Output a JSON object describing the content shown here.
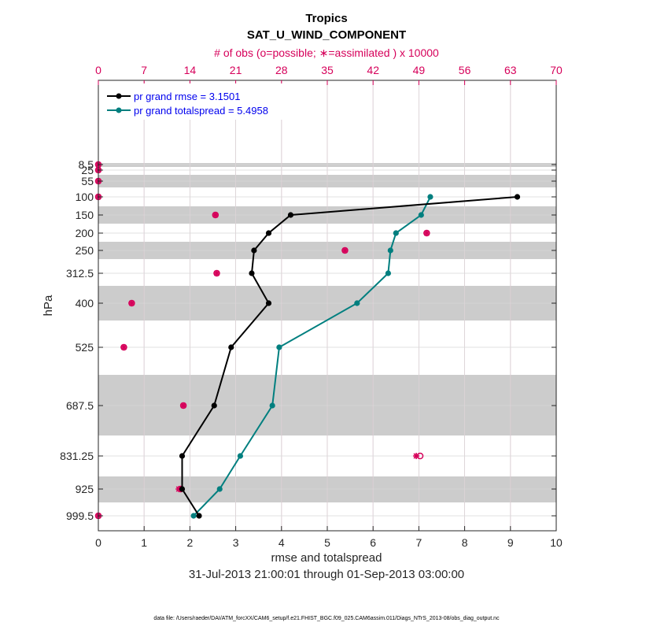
{
  "chart_data": {
    "type": "line",
    "title": "Tropics",
    "subtitle": "SAT_U_WIND_COMPONENT",
    "top_axis_label": "# of obs (o=possible; ∗=assimilated ) x 10000",
    "xlabel": "rmse and totalspread",
    "ylabel": "hPa",
    "date_range": "31-Jul-2013 21:00:01 through 01-Sep-2013 03:00:00",
    "footer": "data file: /Users/raeder/DAI/ATM_forcXX/CAM6_setup/f.e21.FHIST_BGC.f09_025.CAM6assim.011/Diags_NTrS_2013-08/obs_diag_output.nc",
    "xlim": [
      0,
      10
    ],
    "x_ticks": [
      "0",
      "1",
      "2",
      "3",
      "4",
      "5",
      "6",
      "7",
      "8",
      "9",
      "10"
    ],
    "top_lim": [
      0,
      70
    ],
    "top_ticks": [
      "0",
      "7",
      "14",
      "21",
      "28",
      "35",
      "42",
      "49",
      "56",
      "63",
      "70"
    ],
    "levels": [
      "8.5",
      "25",
      "55",
      "100",
      "150",
      "200",
      "250",
      "312.5",
      "400",
      "525",
      "687.5",
      "831.25",
      "925",
      "999.5"
    ],
    "grid": true,
    "legend_position": "top-left",
    "series": [
      {
        "name": "pr grand rmse = 3.1501",
        "color": "#000000",
        "points": [
          {
            "level": "100",
            "x": 9.15
          },
          {
            "level": "150",
            "x": 4.2
          },
          {
            "level": "200",
            "x": 3.72
          },
          {
            "level": "250",
            "x": 3.4
          },
          {
            "level": "312.5",
            "x": 3.35
          },
          {
            "level": "400",
            "x": 3.72
          },
          {
            "level": "525",
            "x": 2.9
          },
          {
            "level": "687.5",
            "x": 2.53
          },
          {
            "level": "831.25",
            "x": 1.83
          },
          {
            "level": "925",
            "x": 1.83
          },
          {
            "level": "999.5",
            "x": 2.2
          }
        ]
      },
      {
        "name": "pr grand totalspread = 5.4958",
        "color": "#007f7f",
        "points": [
          {
            "level": "100",
            "x": 7.25
          },
          {
            "level": "150",
            "x": 7.05
          },
          {
            "level": "200",
            "x": 6.5
          },
          {
            "level": "250",
            "x": 6.38
          },
          {
            "level": "312.5",
            "x": 6.33
          },
          {
            "level": "400",
            "x": 5.65
          },
          {
            "level": "525",
            "x": 3.95
          },
          {
            "level": "687.5",
            "x": 3.8
          },
          {
            "level": "831.25",
            "x": 3.1
          },
          {
            "level": "925",
            "x": 2.65
          },
          {
            "level": "999.5",
            "x": 2.08
          }
        ]
      }
    ],
    "obs_counts": [
      {
        "level": "8.5",
        "possible": 0,
        "assimilated": 0
      },
      {
        "level": "25",
        "possible": 0,
        "assimilated": 0
      },
      {
        "level": "55",
        "possible": 0,
        "assimilated": 0
      },
      {
        "level": "100",
        "possible": 0,
        "assimilated": 0
      },
      {
        "level": "150",
        "possible": 17.9,
        "assimilated": 17.9
      },
      {
        "level": "200",
        "possible": 50.2,
        "assimilated": 50.2
      },
      {
        "level": "250",
        "possible": 37.7,
        "assimilated": 37.7
      },
      {
        "level": "312.5",
        "possible": 18.1,
        "assimilated": 18.1
      },
      {
        "level": "400",
        "possible": 5.1,
        "assimilated": 5.1
      },
      {
        "level": "525",
        "possible": 3.9,
        "assimilated": 3.9
      },
      {
        "level": "687.5",
        "possible": 13.0,
        "assimilated": 13.0
      },
      {
        "level": "831.25",
        "possible": 49.2,
        "assimilated": 48.6
      },
      {
        "level": "925",
        "possible": 12.6,
        "assimilated": 12.3
      },
      {
        "level": "999.5",
        "possible": 0,
        "assimilated": 0
      }
    ],
    "colors": {
      "obs_marker": "#d6005a",
      "band_fill": "#cccccc",
      "grid_top": "#e6a3c0",
      "grid": "#d9d9d9"
    }
  }
}
